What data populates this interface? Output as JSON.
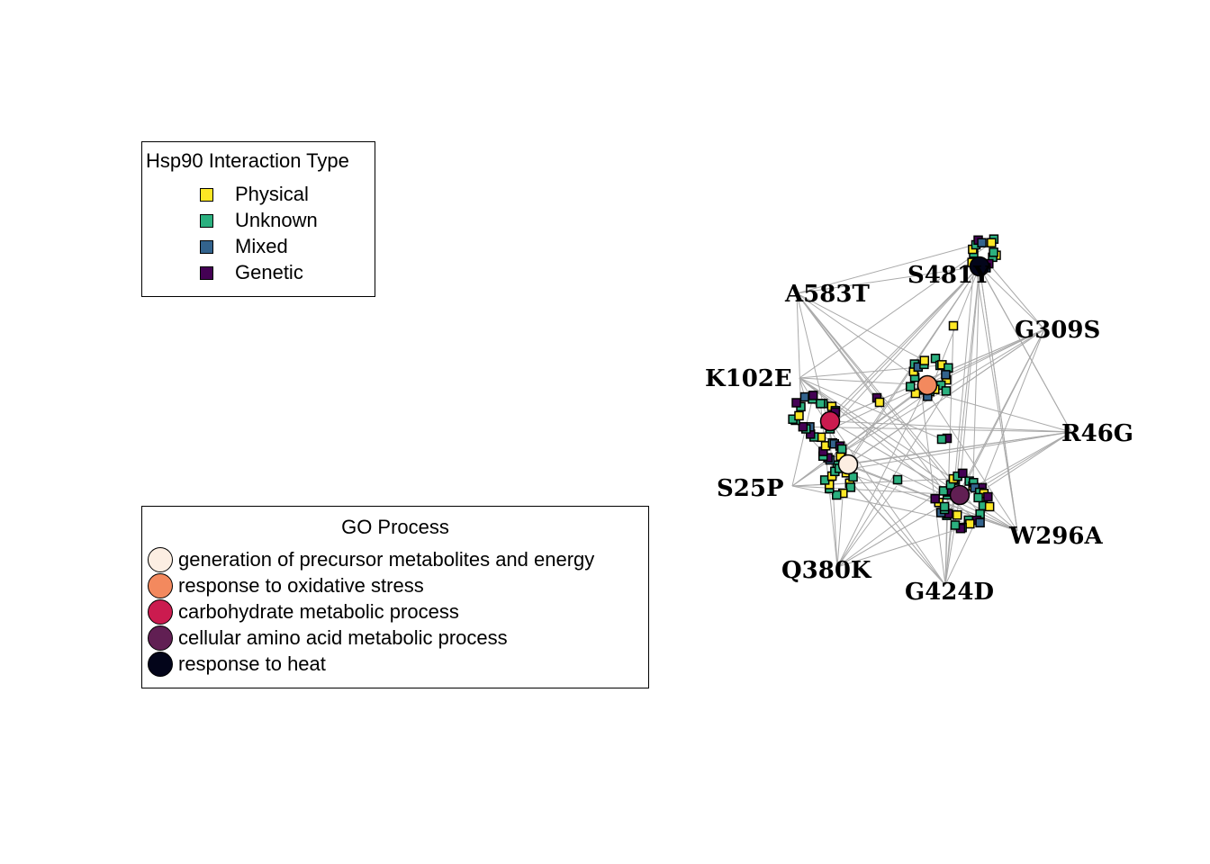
{
  "interaction_legend": {
    "title": "Hsp90 Interaction Type",
    "items": [
      {
        "label": "Physical",
        "color": "#FDE725"
      },
      {
        "label": "Unknown",
        "color": "#2BB07F"
      },
      {
        "label": "Mixed",
        "color": "#33638D"
      },
      {
        "label": "Genetic",
        "color": "#440154"
      }
    ]
  },
  "go_legend": {
    "title": "GO Process",
    "items": [
      {
        "label": "generation of precursor metabolites and energy",
        "color": "#FCEEE2"
      },
      {
        "label": "response to oxidative stress",
        "color": "#F3895E"
      },
      {
        "label": "carbohydrate metabolic process",
        "color": "#CB1B4F"
      },
      {
        "label": "cellular amino acid metabolic process",
        "color": "#611F53"
      },
      {
        "label": "response to heat",
        "color": "#03051A"
      }
    ]
  },
  "network": {
    "edge_color": "#AAAAAA",
    "mutants": [
      "S481Y",
      "A583T",
      "G309S",
      "K102E",
      "R46G",
      "S25P",
      "W296A",
      "Q380K",
      "G424D"
    ]
  }
}
